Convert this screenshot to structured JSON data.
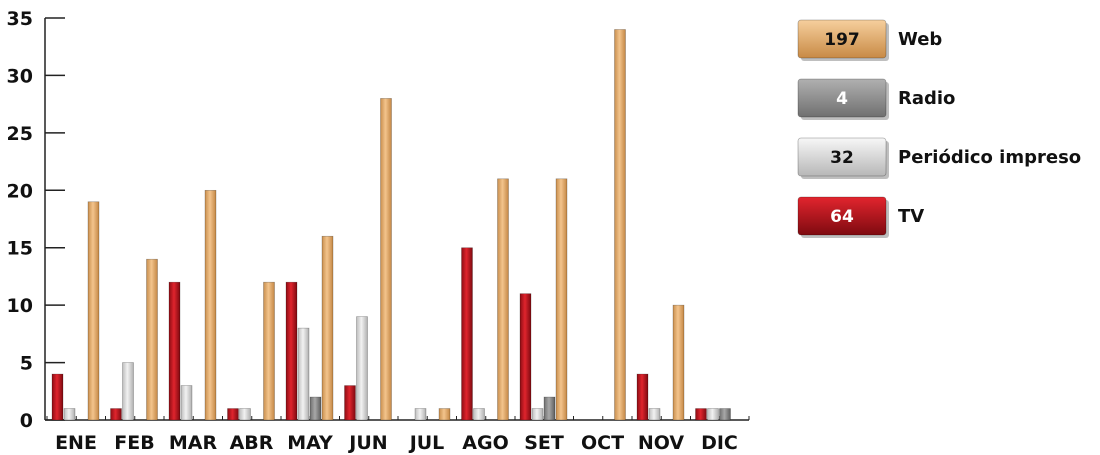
{
  "chart_data": {
    "type": "bar",
    "categories": [
      "ENE",
      "FEB",
      "MAR",
      "ABR",
      "MAY",
      "JUN",
      "JUL",
      "AGO",
      "SET",
      "OCT",
      "NOV",
      "DIC"
    ],
    "series": [
      {
        "name": "TV",
        "total": "64",
        "color": "#c0161f",
        "values": [
          4,
          1,
          12,
          1,
          12,
          3,
          0,
          15,
          11,
          0,
          4,
          1
        ]
      },
      {
        "name": "Periódico impreso",
        "total": "32",
        "color": "#dcdcdc",
        "values": [
          1,
          5,
          3,
          1,
          8,
          9,
          1,
          1,
          1,
          0,
          1,
          1
        ]
      },
      {
        "name": "Radio",
        "total": "4",
        "color": "#8e8e8e",
        "values": [
          0,
          0,
          0,
          0,
          2,
          0,
          0,
          0,
          2,
          0,
          0,
          1
        ]
      },
      {
        "name": "Web",
        "total": "197",
        "color": "#e8b06e",
        "values": [
          19,
          14,
          20,
          12,
          16,
          28,
          1,
          21,
          21,
          34,
          10,
          0
        ]
      }
    ],
    "legend_order": [
      "Web",
      "Radio",
      "Periódico impreso",
      "TV"
    ],
    "ylim": [
      0,
      35
    ],
    "yticks": [
      0,
      5,
      10,
      15,
      20,
      25,
      30,
      35
    ],
    "grid": false,
    "legend_position": "right"
  }
}
